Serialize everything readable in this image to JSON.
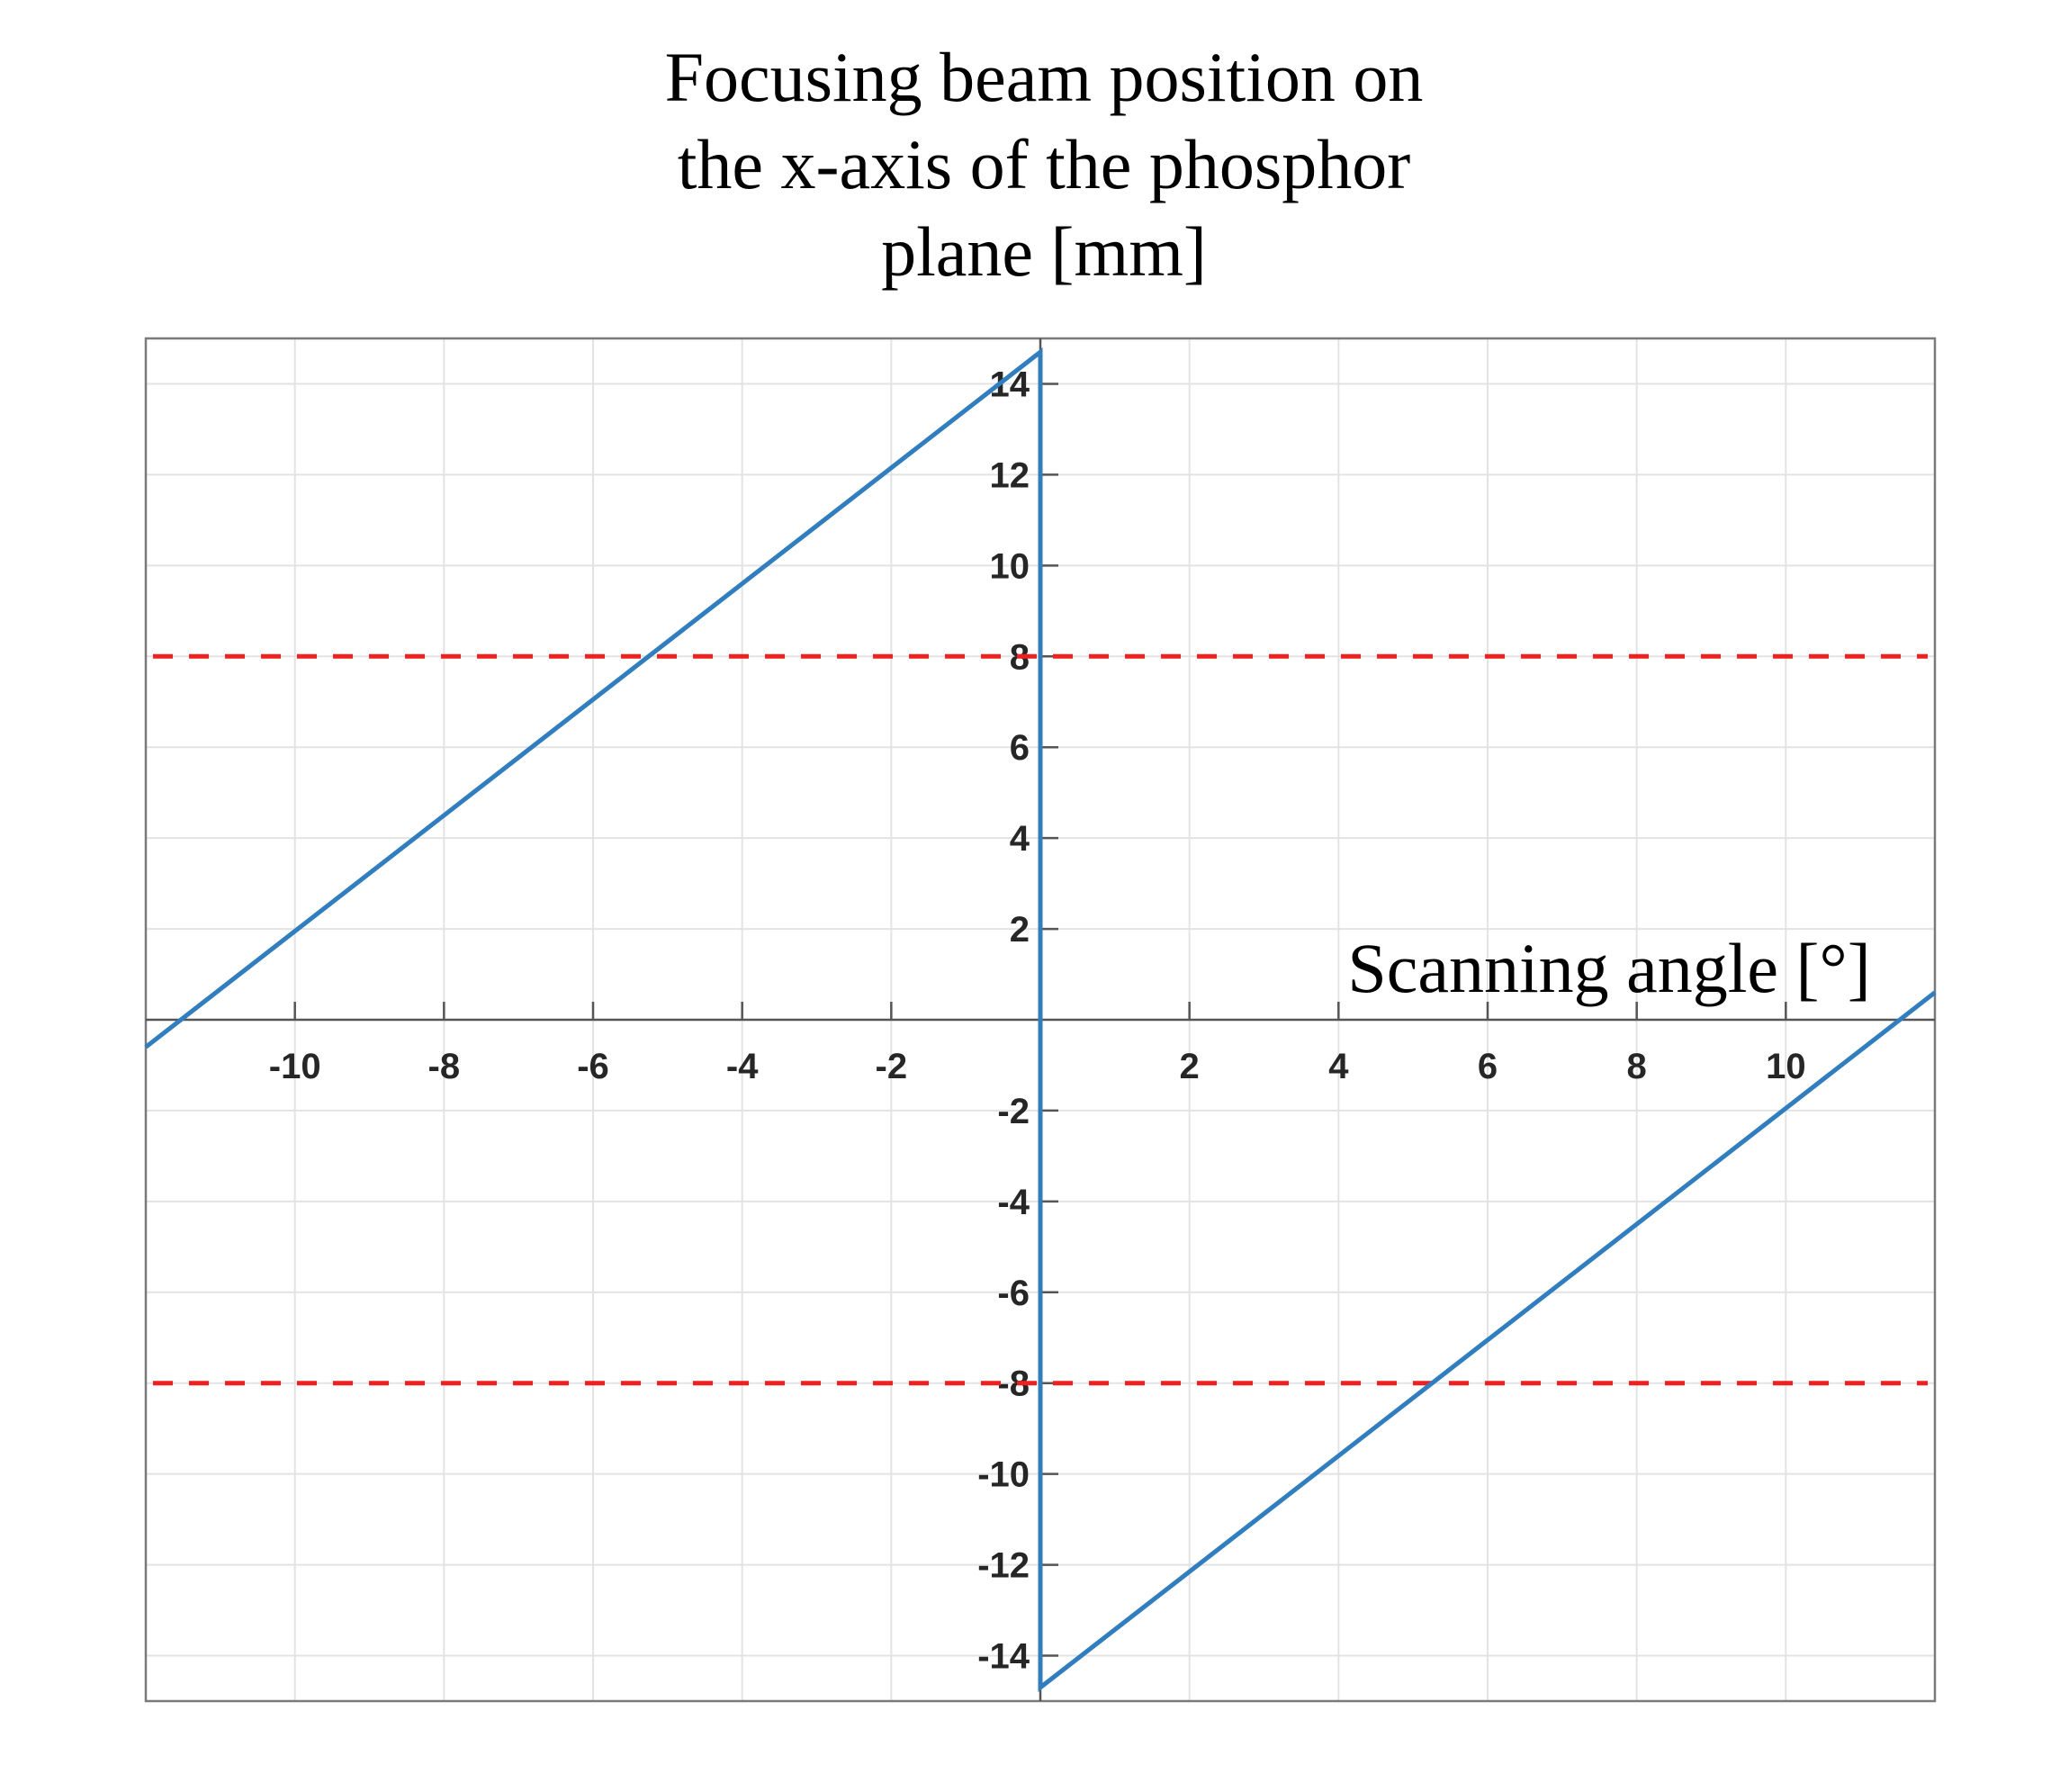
{
  "chart_data": {
    "type": "line",
    "title_lines": [
      "Focusing beam position on",
      "the x-axis of the phosphor",
      "plane [mm]"
    ],
    "xlabel": "Scanning angle [°]",
    "xlim": [
      -12,
      12
    ],
    "ylim": [
      -15,
      15
    ],
    "xticks": [
      -10,
      -8,
      -6,
      -4,
      -2,
      2,
      4,
      6,
      8,
      10
    ],
    "yticks": [
      -14,
      -12,
      -10,
      -8,
      -6,
      -4,
      -2,
      2,
      4,
      6,
      8,
      10,
      12,
      14
    ],
    "grid": true,
    "axes_location": "origin",
    "series": [
      {
        "color": "#2E7EC1",
        "style": "solid",
        "points": [
          [
            -12,
            -0.6
          ],
          [
            0,
            14.7
          ],
          [
            0,
            -14.7
          ],
          [
            12,
            0.6
          ]
        ]
      }
    ],
    "reference_lines": [
      {
        "y": 8,
        "color": "#F02020",
        "style": "dashed"
      },
      {
        "y": -8,
        "color": "#F02020",
        "style": "dashed"
      }
    ]
  }
}
